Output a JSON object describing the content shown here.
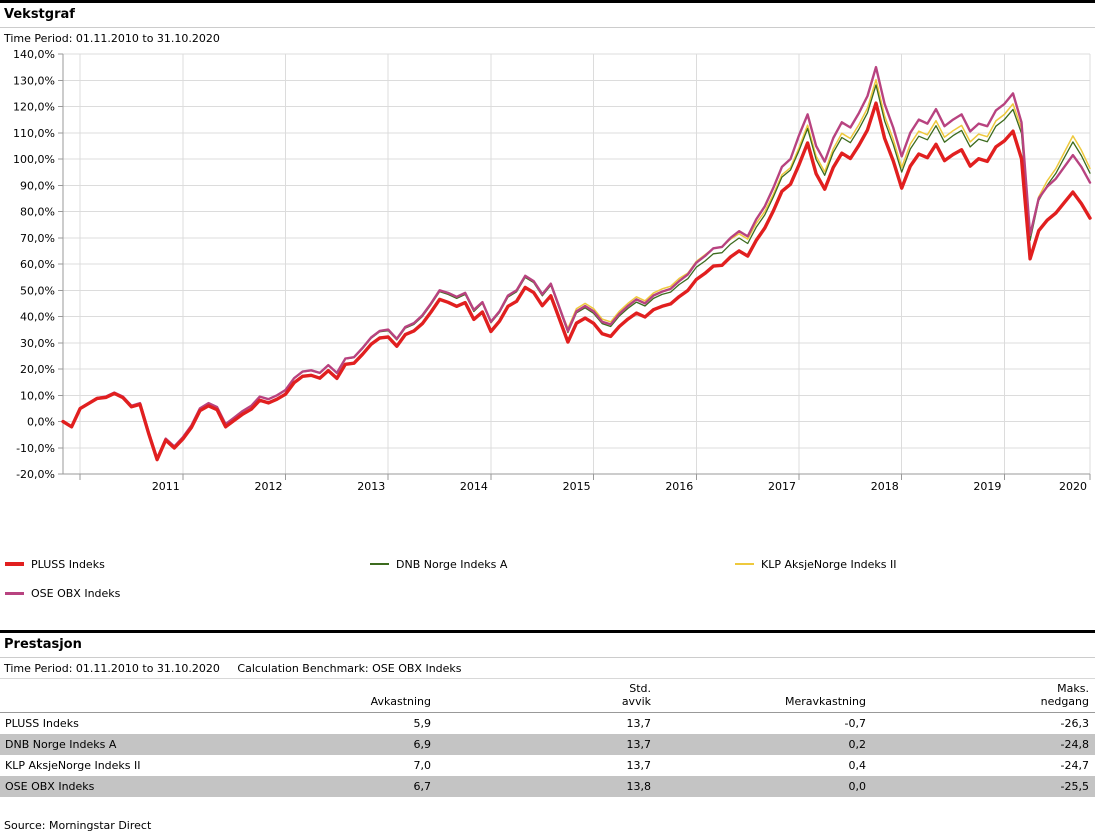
{
  "growth_section": {
    "title": "Vekstgraf",
    "time_period": "Time Period: 01.11.2010 to 31.10.2020"
  },
  "chart_data": {
    "type": "line",
    "title": "Vekstgraf",
    "xlabel": "",
    "ylabel": "",
    "ylim": [
      -20,
      140
    ],
    "ytick_step": 10,
    "grid": true,
    "legend_position": "below",
    "y_tick_labels": [
      "140,0%",
      "130,0%",
      "120,0%",
      "110,0%",
      "100,0%",
      "90,0%",
      "80,0%",
      "70,0%",
      "60,0%",
      "50,0%",
      "40,0%",
      "30,0%",
      "20,0%",
      "10,0%",
      "0,0%",
      "-10,0%",
      "-20,0%"
    ],
    "x_tick_labels": [
      "2011",
      "2012",
      "2013",
      "2014",
      "2015",
      "2016",
      "2017",
      "2018",
      "2019",
      "2020"
    ],
    "x_range_months": 120,
    "start_value": 0.0,
    "series": [
      {
        "name": "PLUSS Indeks",
        "color": "#e11f1f",
        "values": [
          -2.0,
          4.9,
          6.9,
          8.8,
          9.2,
          10.7,
          9.1,
          5.6,
          6.5,
          -4.5,
          -14.5,
          -7.1,
          -10.1,
          -6.7,
          -2.3,
          4.1,
          6.0,
          4.5,
          -2.0,
          0.4,
          2.8,
          4.7,
          8.1,
          7.1,
          8.5,
          10.4,
          14.8,
          17.2,
          17.6,
          16.5,
          19.4,
          16.4,
          21.8,
          22.2,
          25.6,
          29.4,
          31.8,
          32.2,
          28.7,
          33.1,
          34.5,
          37.3,
          41.7,
          46.5,
          45.4,
          43.9,
          45.3,
          38.9,
          41.7,
          34.3,
          38.2,
          43.9,
          45.8,
          51.1,
          49.1,
          44.1,
          47.9,
          39.1,
          30.3,
          37.5,
          39.4,
          37.4,
          33.4,
          32.4,
          36.2,
          39.0,
          41.3,
          39.8,
          42.6,
          43.9,
          44.8,
          47.6,
          49.9,
          54.1,
          56.4,
          59.2,
          59.5,
          62.7,
          65.0,
          63.0,
          69.0,
          73.7,
          80.2,
          87.7,
          90.4,
          97.8,
          106.1,
          94.4,
          88.5,
          96.8,
          102.2,
          100.2,
          105.2,
          111.1,
          121.3,
          107.9,
          99.3,
          88.9,
          97.3,
          101.9,
          100.5,
          105.6,
          99.4,
          101.7,
          103.5,
          97.3,
          100.1,
          99.1,
          104.6,
          106.9,
          110.6,
          100.1,
          62.0,
          72.7,
          76.7,
          79.4,
          83.4,
          87.4,
          83.0,
          77.5
        ]
      },
      {
        "name": "DNB Norge Indeks A",
        "color": "#3c6b1e",
        "values": [
          -2.0,
          5.0,
          7.0,
          9.0,
          9.4,
          10.9,
          9.4,
          5.9,
          6.9,
          -4.1,
          -14.1,
          -6.6,
          -9.6,
          -6.1,
          -1.6,
          4.9,
          6.9,
          5.4,
          -1.1,
          1.4,
          3.9,
          5.9,
          9.4,
          8.4,
          9.9,
          11.9,
          16.4,
          18.9,
          19.4,
          18.4,
          21.4,
          18.3,
          23.8,
          24.3,
          27.7,
          31.7,
          34.2,
          34.6,
          31.1,
          35.6,
          37.0,
          40.0,
          44.5,
          49.5,
          48.4,
          46.9,
          48.4,
          41.9,
          45.1,
          37.6,
          41.5,
          47.4,
          49.4,
          54.9,
          52.9,
          47.9,
          51.9,
          42.9,
          33.9,
          41.4,
          43.3,
          41.2,
          37.3,
          36.2,
          40.2,
          43.1,
          45.5,
          44.0,
          46.9,
          48.4,
          49.3,
          52.2,
          54.4,
          58.8,
          61.1,
          63.9,
          64.3,
          67.6,
          69.9,
          67.8,
          74.0,
          78.7,
          85.5,
          93.1,
          95.8,
          103.2,
          111.6,
          99.8,
          93.8,
          102.5,
          108.2,
          106.2,
          111.4,
          117.6,
          128.2,
          114.5,
          105.6,
          95.0,
          103.8,
          108.7,
          107.3,
          112.7,
          106.4,
          108.9,
          110.9,
          104.6,
          107.6,
          106.6,
          112.5,
          115.0,
          118.9,
          109.8,
          69.0,
          84.2,
          90.0,
          94.5,
          100.5,
          106.5,
          101.3,
          94.6
        ]
      },
      {
        "name": "KLP AksjeNorge Indeks II",
        "color": "#eec93d",
        "values": [
          -2.0,
          5.0,
          7.0,
          9.0,
          9.5,
          11.0,
          9.5,
          6.0,
          7.0,
          -4.0,
          -14.0,
          -6.5,
          -9.5,
          -6.0,
          -1.5,
          5.0,
          7.0,
          5.5,
          -1.0,
          1.5,
          4.0,
          6.0,
          9.5,
          8.5,
          10.0,
          12.0,
          16.4,
          18.9,
          19.4,
          18.4,
          21.4,
          18.4,
          23.9,
          24.4,
          27.8,
          31.8,
          34.3,
          34.8,
          31.2,
          35.7,
          37.2,
          40.2,
          44.7,
          49.7,
          48.7,
          47.2,
          48.7,
          42.2,
          45.2,
          37.7,
          41.7,
          47.7,
          49.7,
          55.2,
          53.2,
          48.2,
          52.2,
          43.2,
          35.5,
          43.0,
          45.0,
          43.0,
          39.0,
          38.0,
          42.0,
          45.0,
          47.5,
          46.0,
          49.0,
          50.5,
          51.5,
          54.5,
          56.5,
          61.0,
          63.5,
          66.0,
          66.5,
          69.5,
          71.5,
          69.5,
          75.5,
          80.0,
          86.5,
          94.0,
          96.7,
          104.3,
          112.9,
          101.1,
          95.1,
          103.9,
          109.8,
          107.8,
          113.1,
          119.4,
          130.2,
          116.4,
          107.5,
          96.8,
          105.7,
          110.6,
          109.2,
          114.6,
          108.3,
          110.8,
          112.8,
          106.5,
          109.5,
          108.5,
          114.5,
          117.0,
          121.0,
          111.5,
          70.2,
          85.6,
          91.7,
          96.3,
          102.5,
          108.8,
          103.3,
          96.4
        ]
      },
      {
        "name": "OSE OBX Indeks",
        "color": "#b84380",
        "values": [
          -2.0,
          5.0,
          7.0,
          9.0,
          9.5,
          11.0,
          9.5,
          6.0,
          7.0,
          -4.0,
          -14.0,
          -6.5,
          -9.5,
          -6.0,
          -1.5,
          5.0,
          7.0,
          5.5,
          -1.0,
          1.5,
          4.0,
          6.0,
          9.5,
          8.5,
          10.0,
          12.0,
          16.5,
          19.0,
          19.5,
          18.5,
          21.5,
          18.5,
          24.0,
          24.5,
          28.0,
          32.0,
          34.5,
          35.0,
          31.5,
          36.0,
          37.5,
          40.5,
          45.0,
          50.0,
          49.0,
          47.5,
          49.0,
          42.5,
          45.5,
          38.0,
          42.0,
          48.0,
          50.0,
          55.5,
          53.5,
          48.5,
          52.5,
          43.5,
          34.5,
          42.0,
          44.0,
          42.0,
          38.0,
          37.0,
          41.0,
          44.0,
          46.5,
          45.0,
          48.0,
          49.5,
          50.5,
          53.5,
          56.0,
          60.5,
          63.0,
          66.0,
          66.5,
          70.0,
          72.5,
          70.5,
          77.0,
          82.0,
          89.0,
          97.0,
          100.0,
          109.0,
          117.0,
          105.0,
          99.0,
          108.0,
          114.0,
          112.0,
          117.5,
          124.0,
          135.0,
          121.0,
          112.0,
          101.0,
          110.0,
          115.0,
          113.5,
          119.0,
          112.5,
          115.0,
          117.0,
          110.5,
          113.5,
          112.5,
          118.5,
          121.0,
          125.0,
          114.0,
          71.0,
          85.0,
          89.5,
          92.5,
          97.0,
          101.5,
          97.0,
          91.0
        ]
      }
    ]
  },
  "performance_section": {
    "title": "Prestasjon",
    "time_period": "Time Period: 01.11.2010 to 31.10.2020",
    "benchmark": "Calculation Benchmark: OSE OBX Indeks",
    "columns": [
      "",
      "Avkastning",
      "Std.\navvik",
      "Meravkastning",
      "Maks.\nnedgang"
    ],
    "rows": [
      {
        "name": "PLUSS Indeks",
        "values": [
          "5,9",
          "13,7",
          "-0,7",
          "-26,3"
        ],
        "shaded": false
      },
      {
        "name": "DNB Norge Indeks A",
        "values": [
          "6,9",
          "13,7",
          "0,2",
          "-24,8"
        ],
        "shaded": true
      },
      {
        "name": "KLP AksjeNorge Indeks II",
        "values": [
          "7,0",
          "13,7",
          "0,4",
          "-24,7"
        ],
        "shaded": false
      },
      {
        "name": "OSE OBX Indeks",
        "values": [
          "6,7",
          "13,8",
          "0,0",
          "-25,5"
        ],
        "shaded": true
      }
    ]
  },
  "footer": {
    "source": "Source: Morningstar Direct"
  },
  "style_colors": {
    "grid": "#dcdcdc",
    "axis": "#9a9a9a",
    "shaded_row": "#c4c4c4"
  }
}
